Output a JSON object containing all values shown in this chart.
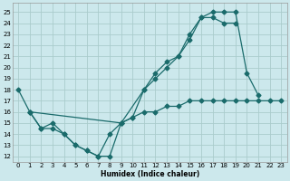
{
  "title": "",
  "xlabel": "Humidex (Indice chaleur)",
  "bg_color": "#cce8ec",
  "grid_color": "#aacccc",
  "line_color": "#1a6b6b",
  "xlim": [
    -0.5,
    23.5
  ],
  "ylim": [
    11.5,
    25.8
  ],
  "xticks": [
    0,
    1,
    2,
    3,
    4,
    5,
    6,
    7,
    8,
    9,
    10,
    11,
    12,
    13,
    14,
    15,
    16,
    17,
    18,
    19,
    20,
    21,
    22,
    23
  ],
  "yticks": [
    12,
    13,
    14,
    15,
    16,
    17,
    18,
    19,
    20,
    21,
    22,
    23,
    24,
    25
  ],
  "curve1_x": [
    0,
    1,
    2,
    3,
    4,
    5,
    6,
    7,
    8,
    9,
    10,
    11,
    12,
    13,
    14,
    15,
    16,
    17,
    18,
    19,
    20,
    21
  ],
  "curve1_y": [
    18,
    16,
    14.5,
    14.5,
    14,
    13,
    12.5,
    12,
    12,
    15,
    15.5,
    18,
    19.5,
    20.5,
    21,
    22.5,
    24.5,
    25,
    25,
    25,
    19.5,
    17.5
  ],
  "curve2_x": [
    1,
    2,
    3,
    4,
    5,
    6,
    7,
    8,
    9,
    11,
    12,
    13,
    14,
    15,
    16,
    17,
    18,
    19
  ],
  "curve2_y": [
    16,
    14.5,
    15,
    14,
    13,
    12.5,
    12,
    14,
    15,
    18,
    19,
    20,
    21,
    23,
    24.5,
    24.5,
    24,
    24
  ],
  "curve3_x": [
    1,
    9,
    10,
    11,
    12,
    13,
    14,
    15,
    16,
    17,
    18,
    19,
    20,
    21,
    22,
    23
  ],
  "curve3_y": [
    16,
    15,
    15.5,
    16,
    16,
    16.5,
    16.5,
    17,
    17,
    17,
    17,
    17,
    17,
    17,
    17,
    17
  ]
}
